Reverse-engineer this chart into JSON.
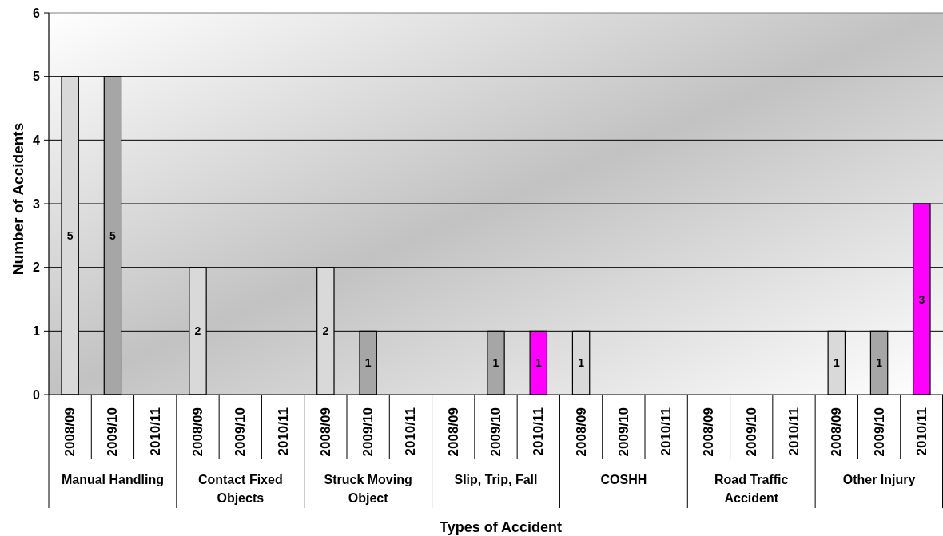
{
  "chart_data": {
    "type": "bar",
    "xlabel": "Types of Accident",
    "ylabel": "Number of Accidents",
    "categories": [
      "Manual Handling",
      "Contact Fixed Objects",
      "Struck Moving Object",
      "Slip, Trip, Fall",
      "COSHH",
      "Road Traffic Accident",
      "Other Injury"
    ],
    "series": [
      {
        "name": "2008/09",
        "color": "#d9d9d9",
        "values": [
          5,
          2,
          2,
          null,
          1,
          null,
          1
        ]
      },
      {
        "name": "2009/10",
        "color": "#a6a6a6",
        "values": [
          5,
          null,
          1,
          1,
          null,
          null,
          1
        ]
      },
      {
        "name": "2010/11",
        "color": "#ff00ff",
        "values": [
          null,
          null,
          null,
          1,
          null,
          null,
          3
        ]
      }
    ],
    "ylim": [
      0,
      6
    ],
    "yticks": [
      0,
      1,
      2,
      3,
      4,
      5,
      6
    ],
    "grid": "y",
    "data_labels": true
  }
}
